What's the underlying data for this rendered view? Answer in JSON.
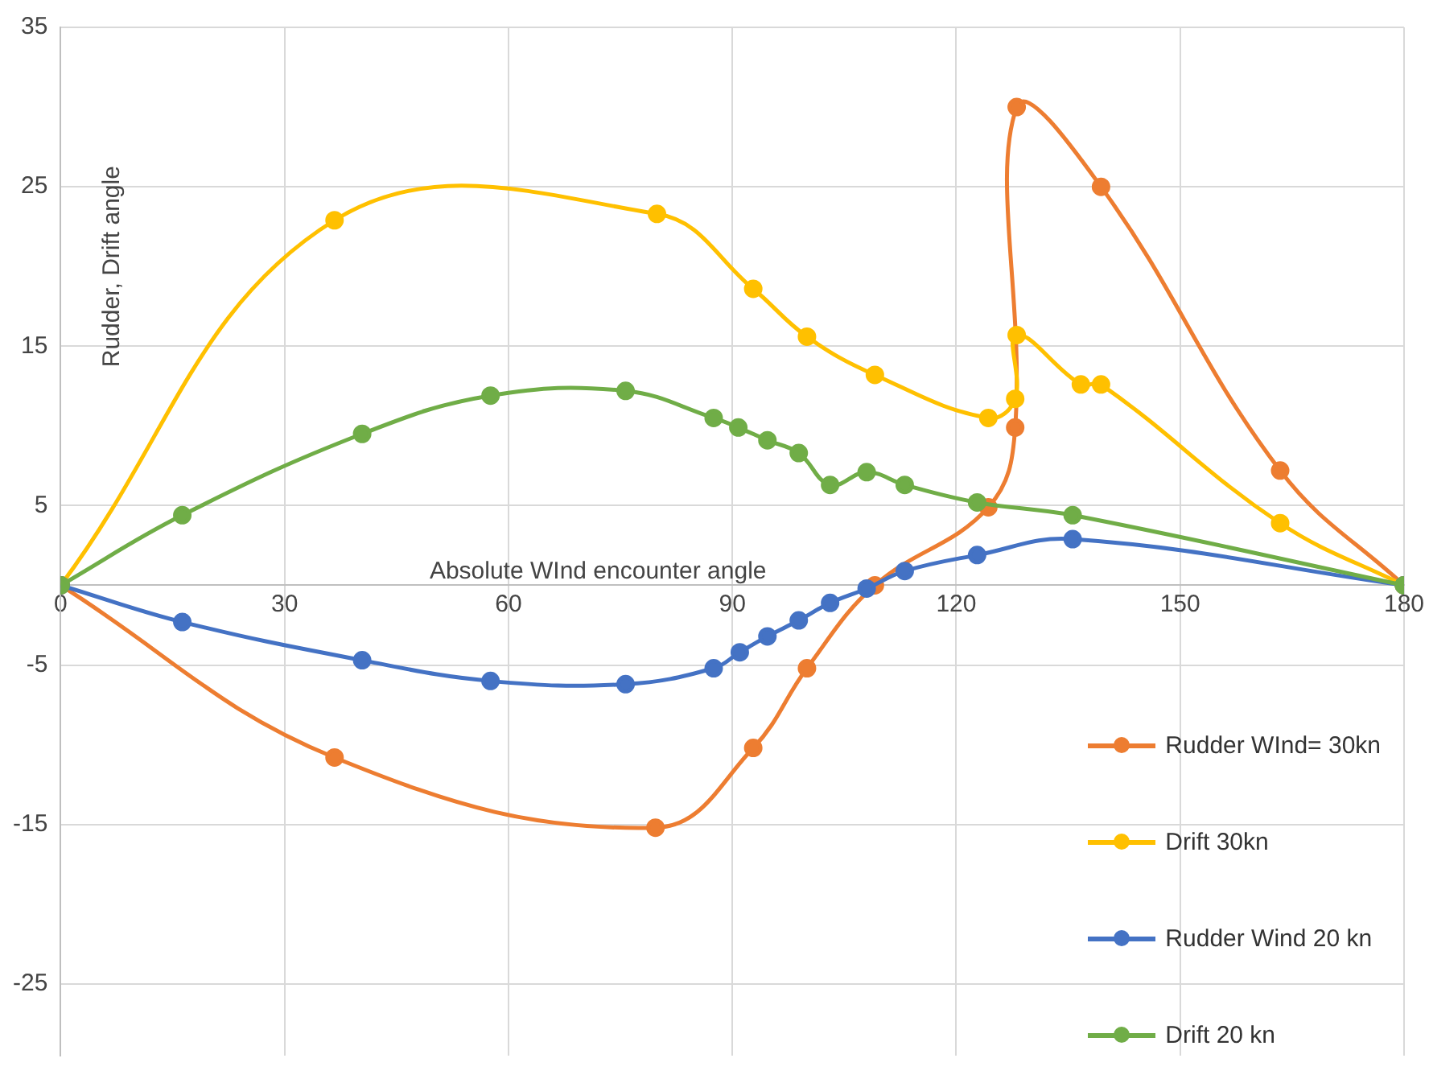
{
  "chart_data": {
    "type": "line",
    "xlabel": "Absolute WInd encounter angle",
    "ylabel": "Rudder, Drift angle",
    "xlim": [
      0,
      180
    ],
    "xticks": [
      0,
      30,
      60,
      90,
      120,
      150,
      180
    ],
    "ylim": [
      -29.5,
      35
    ],
    "yticks": [
      -25,
      -15,
      -5,
      5,
      15,
      25,
      35
    ],
    "grid": true,
    "legend": "bottom right",
    "marker": "circle",
    "line_style": "solid",
    "series": [
      {
        "name": "Rudder WInd= 30kn",
        "color": "#ed7d31",
        "x": [
          0,
          36.7,
          79.7,
          92.8,
          100,
          109.1,
          124.3,
          127.9,
          128.1,
          139.4,
          163.4,
          180
        ],
        "values": [
          0,
          -10.8,
          -15.2,
          -10.2,
          -5.2,
          0,
          4.9,
          9.9,
          30,
          25,
          7.2,
          0
        ]
      },
      {
        "name": "Drift 30kn",
        "color": "#ffc000",
        "x": [
          0,
          36.7,
          79.9,
          92.8,
          100,
          109.1,
          124.3,
          127.9,
          128.1,
          136.7,
          139.4,
          163.4,
          180
        ],
        "values": [
          0,
          22.9,
          23.3,
          18.6,
          15.6,
          13.2,
          10.5,
          11.7,
          15.7,
          12.6,
          12.6,
          3.9,
          0
        ]
      },
      {
        "name": "Rudder Wind 20 kn",
        "color": "#4472c4",
        "x": [
          0,
          16.3,
          40.4,
          57.6,
          75.7,
          87.5,
          91,
          94.7,
          98.9,
          103.1,
          108,
          113.1,
          122.8,
          135.6,
          180
        ],
        "values": [
          0,
          -2.3,
          -4.7,
          -6,
          -6.2,
          -5.2,
          -4.2,
          -3.2,
          -2.2,
          -1.1,
          -0.2,
          0.9,
          1.9,
          2.9,
          0
        ]
      },
      {
        "name": "Drift 20 kn",
        "color": "#70ad47",
        "x": [
          0,
          16.3,
          40.4,
          57.6,
          75.7,
          87.5,
          90.8,
          94.7,
          98.9,
          103.1,
          108,
          113.1,
          122.8,
          135.6,
          180
        ],
        "values": [
          0,
          4.4,
          9.5,
          11.9,
          12.2,
          10.5,
          9.9,
          9.1,
          8.3,
          6.3,
          7.1,
          6.3,
          5.2,
          4.4,
          0
        ]
      }
    ]
  }
}
